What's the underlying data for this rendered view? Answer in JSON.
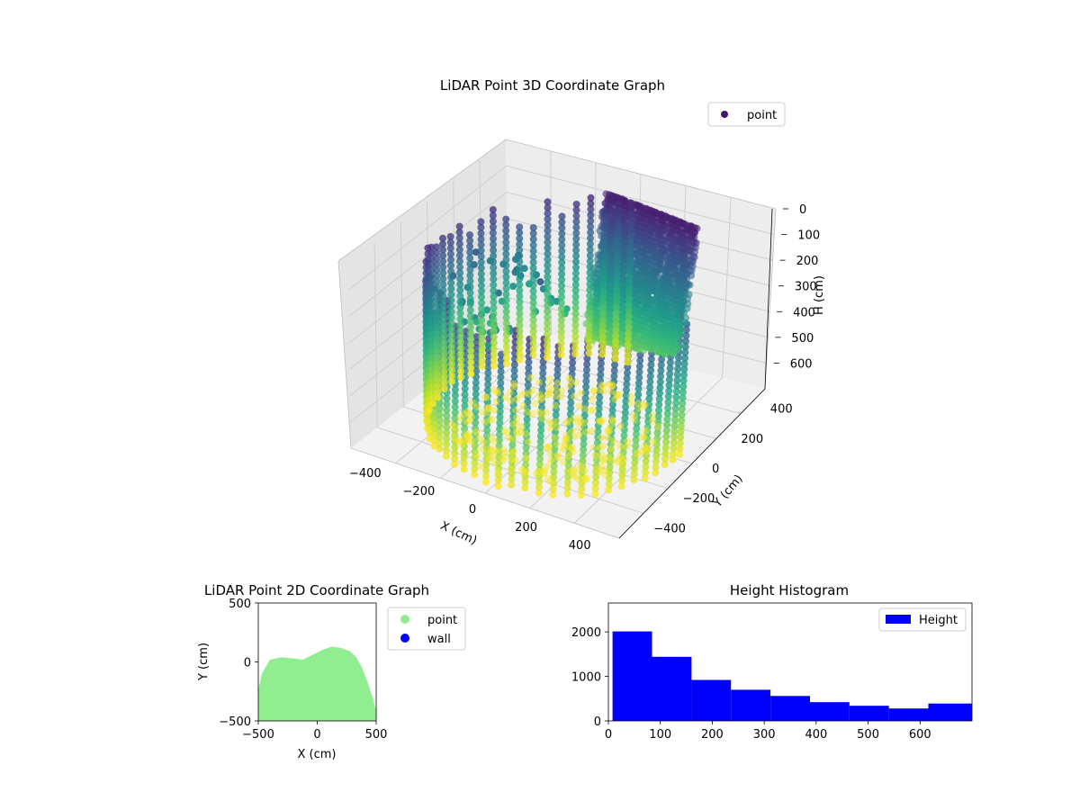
{
  "chart_data": [
    {
      "type": "scatter",
      "projection": "3d",
      "title": "LiDAR Point 3D Coordinate Graph",
      "xlabel": "X (cm)",
      "ylabel": "Y (cm)",
      "zlabel": "H (cm)",
      "x_ticks": [
        "−400",
        "−200",
        "0",
        "200",
        "400"
      ],
      "y_ticks": [
        "−400",
        "−200",
        "0",
        "200",
        "400"
      ],
      "z_ticks": [
        "0",
        "100",
        "200",
        "300",
        "400",
        "500",
        "600"
      ],
      "xlim": [
        -500,
        500
      ],
      "ylim": [
        -500,
        500
      ],
      "zlim": [
        0,
        700
      ],
      "z_axis_inverted": true,
      "colormap": "viridis",
      "legend": {
        "position": "upper-right",
        "entries": [
          {
            "label": "point",
            "color": "#46176a"
          }
        ]
      },
      "grid": true
    },
    {
      "type": "scatter",
      "title": "LiDAR Point 2D Coordinate Graph",
      "xlabel": "X (cm)",
      "ylabel": "Y (cm)",
      "x_ticks": [
        "−500",
        "0",
        "500"
      ],
      "y_ticks": [
        "500",
        "0",
        "−500"
      ],
      "xlim": [
        -500,
        500
      ],
      "ylim": [
        -500,
        500
      ],
      "legend": {
        "position": "outside-right",
        "entries": [
          {
            "label": "point",
            "color": "#90ee90"
          },
          {
            "label": "wall",
            "color": "#0000ff"
          }
        ]
      },
      "series": [
        {
          "name": "point",
          "color": "#90ee90",
          "outline": [
            [
              -500,
              -500
            ],
            [
              -500,
              -240
            ],
            [
              -470,
              -100
            ],
            [
              -400,
              20
            ],
            [
              -300,
              40
            ],
            [
              -200,
              30
            ],
            [
              -120,
              20
            ],
            [
              -40,
              60
            ],
            [
              40,
              100
            ],
            [
              120,
              130
            ],
            [
              200,
              120
            ],
            [
              280,
              90
            ],
            [
              330,
              40
            ],
            [
              370,
              -30
            ],
            [
              420,
              -150
            ],
            [
              470,
              -300
            ],
            [
              500,
              -420
            ],
            [
              500,
              -500
            ]
          ]
        }
      ]
    },
    {
      "type": "bar",
      "title": "Height Histogram",
      "xlabel": "",
      "ylabel": "",
      "x_ticks": [
        "0",
        "100",
        "200",
        "300",
        "400",
        "500",
        "600"
      ],
      "y_ticks": [
        "0",
        "1000",
        "2000"
      ],
      "xlim": [
        0,
        700
      ],
      "ylim": [
        0,
        2650
      ],
      "legend": {
        "position": "upper-right",
        "entries": [
          {
            "label": "Height",
            "color": "#0000ff"
          }
        ]
      },
      "bin_edges": [
        8,
        84,
        160,
        236,
        312,
        388,
        464,
        540,
        616,
        700
      ],
      "series": [
        {
          "name": "Height",
          "color": "#0000ff",
          "values": [
            2010,
            1440,
            920,
            700,
            560,
            420,
            340,
            280,
            390
          ]
        }
      ]
    }
  ]
}
